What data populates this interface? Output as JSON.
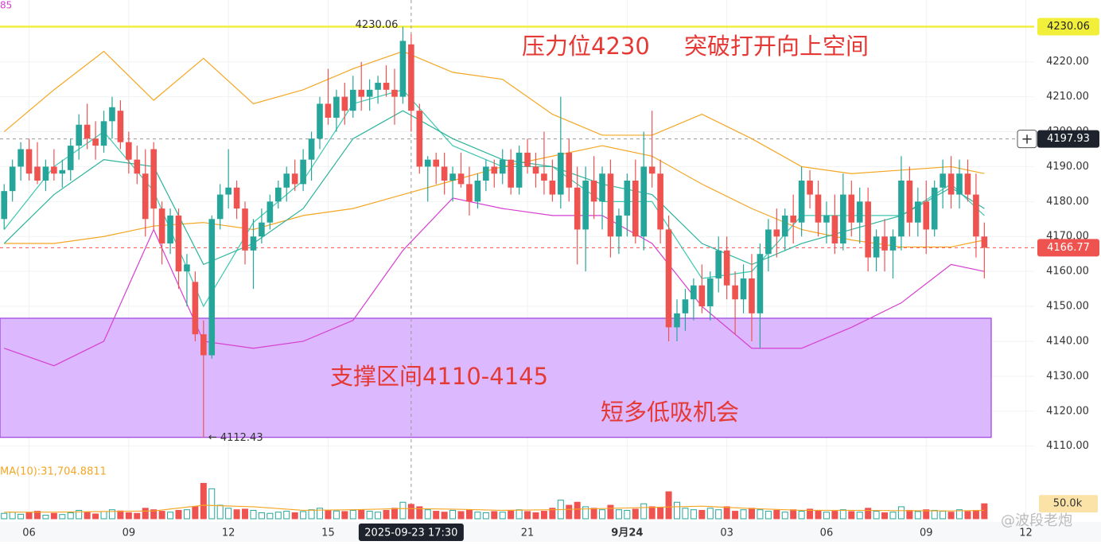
{
  "chart_data": {
    "type": "candlestick",
    "indicator_label": "85",
    "annotations": [
      "压力位4230",
      "突破打开向上空间",
      "支撑区间4110-4145",
      "短多低吸机会"
    ],
    "watermark": "@波段老炮",
    "up_color": "#26a69a",
    "down_color": "#ef5350",
    "open": [
      4175,
      4183,
      4190,
      4195,
      4190,
      4186,
      4190,
      4188,
      4189,
      4196,
      4202,
      4198,
      4196,
      4203,
      4206,
      4197,
      4192,
      4188,
      4195,
      4178,
      4168,
      4176,
      4160,
      4157,
      4142,
      4136,
      4175,
      4182,
      4184,
      4178,
      4166,
      4170,
      4174,
      4180,
      4184,
      4188,
      4185,
      4192,
      4198,
      4208,
      4204,
      4210,
      4206,
      4212,
      4210,
      4212,
      4214,
      4212,
      4210,
      4225,
      4206,
      4190,
      4192,
      4190,
      4186,
      4188,
      4185,
      4180,
      4186,
      4190,
      4188,
      4192,
      4184,
      4194,
      4190,
      4188,
      4186,
      4182,
      4194,
      4184,
      4172,
      4186,
      4180,
      4188,
      4170,
      4176,
      4186,
      4170,
      4190,
      4188,
      4172,
      4144,
      4148,
      4152,
      4156,
      4150,
      4158,
      4166,
      4156,
      4152,
      4158,
      4148,
      4165,
      4172,
      4170,
      4176,
      4174,
      4186,
      4182,
      4174,
      4176,
      4168,
      4182,
      4174,
      4180,
      4164,
      4170,
      4166,
      4170,
      4186,
      4174,
      4180,
      4172,
      4184,
      4188,
      4182,
      4188,
      4182,
      4170
    ],
    "high": [
      4185,
      4192,
      4197,
      4198,
      4197,
      4192,
      4195,
      4192,
      4198,
      4205,
      4208,
      4203,
      4206,
      4210,
      4209,
      4200,
      4196,
      4195,
      4197,
      4180,
      4178,
      4178,
      4165,
      4160,
      4146,
      4176,
      4185,
      4195,
      4186,
      4180,
      4175,
      4178,
      4182,
      4186,
      4190,
      4192,
      4195,
      4200,
      4210,
      4218,
      4212,
      4214,
      4216,
      4220,
      4215,
      4216,
      4219,
      4218,
      4230.06,
      4228,
      4208,
      4193,
      4194,
      4194,
      4190,
      4194,
      4190,
      4188,
      4192,
      4192,
      4195,
      4195,
      4196,
      4198,
      4194,
      4200,
      4192,
      4210,
      4198,
      4190,
      4190,
      4193,
      4190,
      4192,
      4178,
      4188,
      4192,
      4200,
      4206,
      4192,
      4176,
      4152,
      4155,
      4158,
      4162,
      4160,
      4170,
      4170,
      4160,
      4162,
      4165,
      4168,
      4175,
      4178,
      4178,
      4182,
      4190,
      4189,
      4186,
      4180,
      4182,
      4188,
      4186,
      4184,
      4184,
      4172,
      4175,
      4172,
      4193,
      4190,
      4184,
      4186,
      4186,
      4192,
      4193,
      4192,
      4192,
      4188,
      4174
    ],
    "low": [
      4172,
      4180,
      4186,
      4186,
      4185,
      4183,
      4186,
      4184,
      4186,
      4192,
      4195,
      4192,
      4194,
      4198,
      4195,
      4188,
      4185,
      4170,
      4172,
      4162,
      4165,
      4155,
      4150,
      4140,
      4112.43,
      4135,
      4172,
      4178,
      4175,
      4162,
      4155,
      4168,
      4172,
      4178,
      4180,
      4183,
      4183,
      4186,
      4195,
      4202,
      4200,
      4202,
      4204,
      4206,
      4206,
      4208,
      4210,
      4202,
      4208,
      4200,
      4188,
      4180,
      4185,
      4182,
      4180,
      4184,
      4176,
      4178,
      4183,
      4184,
      4185,
      4182,
      4182,
      4188,
      4184,
      4182,
      4180,
      4178,
      4180,
      4162,
      4160,
      4175,
      4172,
      4164,
      4165,
      4170,
      4168,
      4166,
      4184,
      4168,
      4140,
      4140,
      4143,
      4146,
      4148,
      4146,
      4154,
      4152,
      4142,
      4148,
      4140,
      4138,
      4160,
      4164,
      4166,
      4168,
      4170,
      4178,
      4170,
      4168,
      4165,
      4166,
      4170,
      4168,
      4160,
      4160,
      4160,
      4158,
      4166,
      4170,
      4170,
      4165,
      4170,
      4178,
      4178,
      4178,
      4180,
      4164,
      4158
    ],
    "close": [
      4183,
      4190,
      4195,
      4188,
      4186,
      4190,
      4188,
      4189,
      4196,
      4202,
      4198,
      4196,
      4203,
      4207,
      4197,
      4192,
      4188,
      4175,
      4178,
      4168,
      4176,
      4160,
      4162,
      4142,
      4136,
      4175,
      4182,
      4184,
      4178,
      4166,
      4170,
      4174,
      4180,
      4184,
      4188,
      4185,
      4192,
      4198,
      4208,
      4204,
      4210,
      4206,
      4212,
      4210,
      4212,
      4214,
      4212,
      4210,
      4226,
      4206,
      4190,
      4192,
      4190,
      4186,
      4188,
      4185,
      4180,
      4186,
      4190,
      4188,
      4192,
      4184,
      4194,
      4190,
      4188,
      4186,
      4182,
      4194,
      4184,
      4172,
      4186,
      4180,
      4188,
      4170,
      4176,
      4186,
      4170,
      4190,
      4188,
      4172,
      4144,
      4148,
      4152,
      4156,
      4150,
      4158,
      4166,
      4156,
      4152,
      4158,
      4148,
      4165,
      4172,
      4170,
      4176,
      4174,
      4186,
      4182,
      4174,
      4176,
      4168,
      4182,
      4174,
      4180,
      4164,
      4170,
      4166,
      4170,
      4186,
      4174,
      4180,
      4172,
      4184,
      4188,
      4182,
      4188,
      4182,
      4170,
      4166.77
    ],
    "volume": [
      18000,
      22000,
      15000,
      20000,
      25000,
      12000,
      18000,
      14000,
      20000,
      28000,
      22000,
      16000,
      24000,
      30000,
      26000,
      20000,
      18000,
      35000,
      30000,
      25000,
      22000,
      28000,
      30000,
      40000,
      118000,
      100000,
      45000,
      35000,
      30000,
      32000,
      28000,
      20000,
      18000,
      22000,
      25000,
      20000,
      24000,
      30000,
      35000,
      28000,
      26000,
      24000,
      28000,
      30000,
      25000,
      22000,
      28000,
      35000,
      55000,
      48000,
      40000,
      30000,
      25000,
      22000,
      28000,
      24000,
      30000,
      22000,
      20000,
      24000,
      22000,
      26000,
      30000,
      24000,
      20000,
      25000,
      35000,
      62000,
      45000,
      55000,
      40000,
      35000,
      30000,
      45000,
      30000,
      28000,
      32000,
      50000,
      40000,
      38000,
      90000,
      55000,
      35000,
      30000,
      28000,
      35000,
      30000,
      40000,
      25000,
      30000,
      35000,
      30000,
      25000,
      28000,
      22000,
      30000,
      25000,
      32000,
      28000,
      22000,
      25000,
      30000,
      24000,
      22000,
      35000,
      25000,
      20000,
      22000,
      40000,
      28000,
      24000,
      30000,
      28000,
      25000,
      22000,
      30000,
      24000,
      28000,
      50000
    ],
    "overlays": [
      {
        "color": "#f5a623",
        "x": [
          0,
          6,
          12,
          18,
          24,
          30,
          36,
          42,
          48,
          54,
          60,
          66,
          72,
          78,
          84,
          90,
          96,
          102,
          108,
          114,
          118
        ],
        "values": [
          4200,
          4212,
          4223,
          4209,
          4221,
          4208,
          4212,
          4218,
          4223,
          4217,
          4215,
          4205,
          4199,
          4199,
          4205,
          4198,
          4190,
          4188,
          4189,
          4190,
          4188
        ]
      },
      {
        "color": "#f5a623",
        "x": [
          0,
          6,
          12,
          18,
          24,
          30,
          36,
          42,
          48,
          54,
          60,
          66,
          72,
          78,
          84,
          90,
          96,
          102,
          108,
          114,
          118
        ],
        "values": [
          4168,
          4168,
          4170,
          4173,
          4174,
          4172,
          4176,
          4178,
          4182,
          4186,
          4190,
          4193,
          4196,
          4193,
          4185,
          4178,
          4172,
          4169,
          4167,
          4167,
          4169
        ]
      },
      {
        "color": "#d63fd0",
        "x": [
          0,
          6,
          12,
          18,
          24,
          30,
          36,
          42,
          48,
          54,
          60,
          66,
          72,
          78,
          84,
          90,
          96,
          102,
          108,
          114,
          118
        ],
        "values": [
          4138,
          4133,
          4140,
          4172,
          4140,
          4138,
          4140,
          4146,
          4166,
          4181,
          4178,
          4176,
          4176,
          4168,
          4150,
          4138,
          4138,
          4144,
          4151,
          4162,
          4160
        ]
      },
      {
        "color": "#3cc8b0",
        "x": [
          0,
          6,
          12,
          18,
          24,
          30,
          36,
          42,
          48,
          54,
          60,
          66,
          72,
          78,
          84,
          90,
          96,
          102,
          108,
          114,
          118
        ],
        "values": [
          4172,
          4190,
          4200,
          4183,
          4150,
          4174,
          4186,
          4208,
          4212,
          4196,
          4190,
          4190,
          4180,
          4180,
          4158,
          4160,
          4176,
          4176,
          4176,
          4185,
          4176
        ]
      },
      {
        "color": "#2bb39b",
        "x": [
          0,
          6,
          12,
          18,
          24,
          30,
          36,
          42,
          48,
          54,
          60,
          66,
          72,
          78,
          84,
          90,
          96,
          102,
          108,
          114,
          118
        ],
        "values": [
          4168,
          4182,
          4192,
          4190,
          4162,
          4168,
          4178,
          4198,
          4206,
          4198,
          4192,
          4190,
          4185,
          4182,
          4168,
          4162,
          4168,
          4172,
          4176,
          4184,
          4178
        ]
      }
    ],
    "volume_ma": {
      "label": "MA(10):31,704.8811",
      "color": "#f5a623",
      "x": [
        0,
        6,
        12,
        18,
        24,
        30,
        36,
        42,
        48,
        54,
        60,
        66,
        72,
        78,
        84,
        90,
        96,
        102,
        108,
        114,
        118
      ],
      "values": [
        22000,
        22000,
        24000,
        26000,
        45000,
        40000,
        28000,
        30000,
        34000,
        32000,
        28000,
        30000,
        34000,
        38000,
        42000,
        34000,
        28000,
        28000,
        27000,
        26000,
        28000
      ]
    },
    "volume_lim": [
      0,
      130000
    ],
    "volume_ticks": [
      {
        "value": 50000,
        "label": "50.0k"
      }
    ],
    "support_zone": [
      4112.5,
      4146.6
    ],
    "high_line": 4230.06,
    "high_label": 4230.06,
    "low_label": 4112.43,
    "last_price": 4166.77,
    "crosshair": {
      "price": 4197.93,
      "x": {
        "value": 49,
        "label": "2025-09-23 17:30"
      }
    },
    "xlim": [
      -0.5,
      124
    ],
    "ylim": [
      4105.6,
      4237.7
    ],
    "yticks": [
      {
        "value": 4110,
        "label": "4110.00"
      },
      {
        "value": 4120,
        "label": "4120.00"
      },
      {
        "value": 4130,
        "label": "4130.00"
      },
      {
        "value": 4140,
        "label": "4140.00"
      },
      {
        "value": 4150,
        "label": "4150.00"
      },
      {
        "value": 4160,
        "label": "4160.00"
      },
      {
        "value": 4170,
        "label": "4170.00"
      },
      {
        "value": 4180,
        "label": "4180.00"
      },
      {
        "value": 4190,
        "label": "4190.00"
      },
      {
        "value": 4200,
        "label": "4200.00"
      },
      {
        "value": 4210,
        "label": "4210.00"
      },
      {
        "value": 4220,
        "label": "4220.00"
      }
    ],
    "xticks": [
      {
        "value": 3,
        "label": "06"
      },
      {
        "value": 15,
        "label": "09"
      },
      {
        "value": 27,
        "label": "12"
      },
      {
        "value": 39,
        "label": "15"
      },
      {
        "value": 63,
        "label": "21"
      },
      {
        "value": 75,
        "label": "9月24"
      },
      {
        "value": 87,
        "label": "03"
      },
      {
        "value": 99,
        "label": "06"
      },
      {
        "value": 111,
        "label": "09"
      },
      {
        "value": 123,
        "label": "12"
      }
    ]
  }
}
